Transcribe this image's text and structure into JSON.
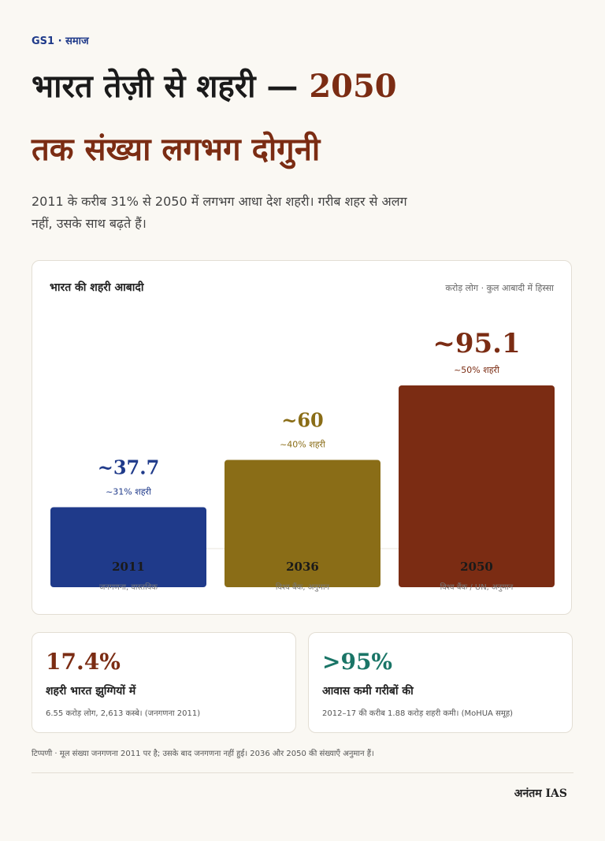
{
  "tag": "GS1 · समाज",
  "title": {
    "line1_main": "भारत तेज़ी से शहरी — ",
    "line1_accent": "2050",
    "line2": "तक संख्या लगभग दोगुनी"
  },
  "subtitle": "2011 के करीब 31% से 2050 में लगभग आधा देश शहरी। गरीब शहर से अलग नहीं, उसके साथ बढ़ते हैं।",
  "colors": {
    "blue": "#1f3a8a",
    "olive": "#8a6d17",
    "rust": "#7b2c13",
    "teal": "#1a7567"
  },
  "chart_data": {
    "type": "bar",
    "title": "भारत की शहरी आबादी",
    "units_note": "करोड़ लोग · कुल आबादी में हिस्सा",
    "categories": [
      "2011",
      "2036",
      "2050"
    ],
    "values": [
      37.7,
      60,
      95.1
    ],
    "value_labels": [
      "~37.7",
      "~60",
      "~95.1"
    ],
    "share_labels": [
      "~31% शहरी",
      "~40% शहरी",
      "~50% शहरी"
    ],
    "sources": [
      "जनगणना, वास्तविक",
      "विश्व बैंक, अनुमान",
      "विश्व बैंक / UN, अनुमान"
    ],
    "bar_colors": [
      "#1f3a8a",
      "#8a6d17",
      "#7b2c13"
    ],
    "ylim": [
      0,
      95.1
    ]
  },
  "stats": [
    {
      "value": "17.4%",
      "label": "शहरी भारत झुग्गियों में",
      "note": "6.55 करोड़ लोग, 2,613 कस्बे। (जनगणना 2011)",
      "color": "#7b2c13"
    },
    {
      "value": ">95%",
      "label": "आवास कमी गरीबों की",
      "note": "2012–17 की करीब 1.88 करोड़ शहरी कमी। (MoHUA समूह)",
      "color": "#1a7567"
    }
  ],
  "footnote": "टिप्पणी · मूल संख्या जनगणना 2011 पर है; उसके बाद जनगणना नहीं हुई। 2036 और 2050 की संख्याएँ अनुमान हैं।",
  "brand": "अनंतम IAS"
}
